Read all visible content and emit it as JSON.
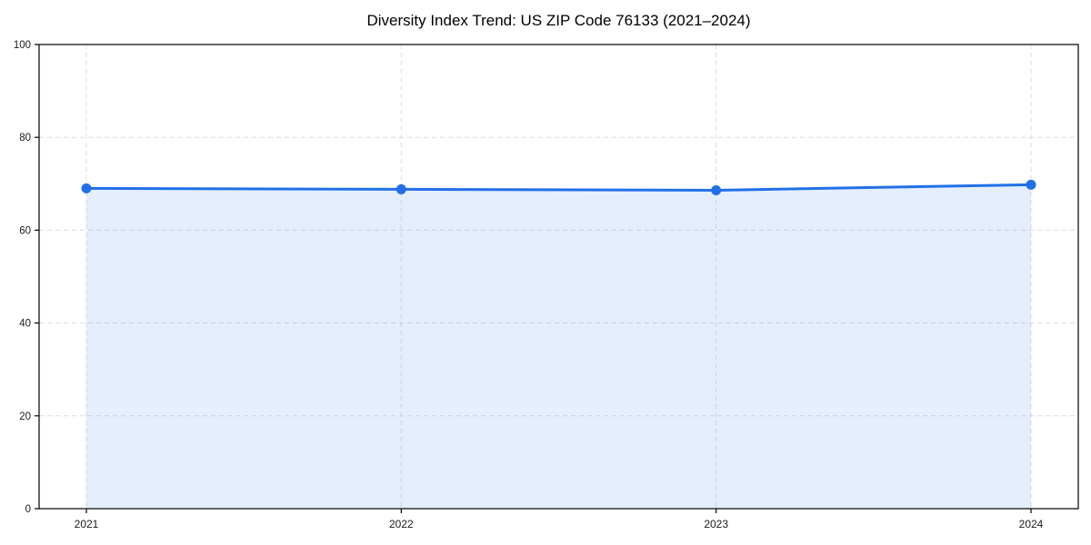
{
  "chart_data": {
    "type": "area",
    "title": "Diversity Index Trend: US ZIP Code 76133 (2021–2024)",
    "categories": [
      "2021",
      "2022",
      "2023",
      "2024"
    ],
    "values": [
      69.0,
      68.8,
      68.6,
      69.8
    ],
    "series_name": "Diversity Index",
    "xlabel": "",
    "ylabel": "",
    "ylim": [
      0,
      100
    ],
    "yticks": [
      0,
      20,
      40,
      60,
      80,
      100
    ],
    "grid": "dashed",
    "legend": "none",
    "line_color": "#2270e8",
    "marker_color": "#2270e8",
    "area_fill_color": "#2270e8",
    "area_fill_opacity": 0.12,
    "grid_color": "#dcdcdc",
    "spine_color": "#000000",
    "tick_label_color": "#1a1a1a"
  }
}
